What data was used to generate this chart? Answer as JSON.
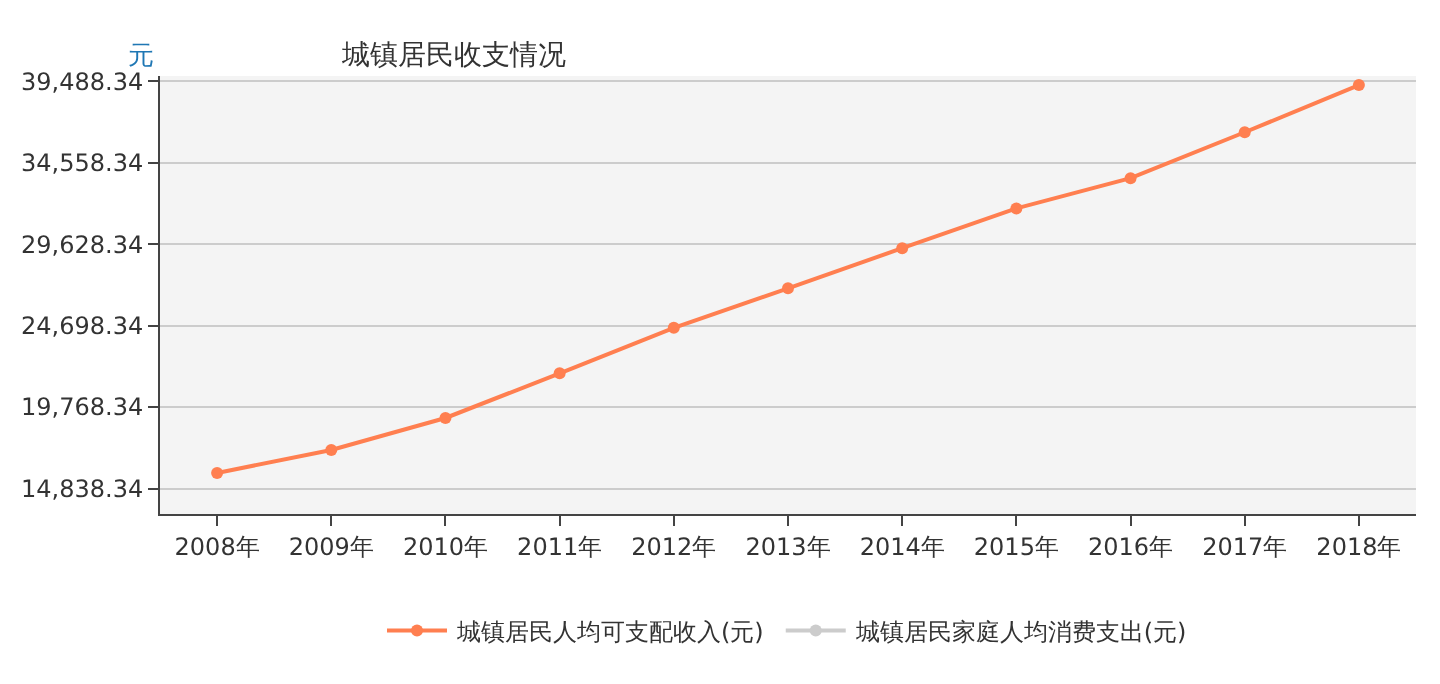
{
  "chart_data": {
    "type": "line",
    "title": "城镇居民收支情况",
    "ylabel": "元",
    "categories": [
      "2008年",
      "2009年",
      "2010年",
      "2011年",
      "2012年",
      "2013年",
      "2014年",
      "2015年",
      "2016年",
      "2017年",
      "2018年"
    ],
    "series": [
      {
        "name": "城镇居民人均可支配收入(元)",
        "color": "#ff7f50",
        "values": [
          15781,
          17175,
          19109,
          21810,
          24565,
          26955,
          29381,
          31790,
          33616,
          36396,
          39251
        ]
      },
      {
        "name": "城镇居民家庭人均消费支出(元)",
        "color": "#cccccc",
        "values": [
          null,
          null,
          null,
          null,
          null,
          null,
          null,
          null,
          null,
          null,
          null
        ]
      }
    ],
    "ylim": [
      13300,
      39800
    ],
    "yticks": [
      {
        "value": 14838.34,
        "label": "14,838.34"
      },
      {
        "value": 19768.34,
        "label": "19,768.34"
      },
      {
        "value": 24698.34,
        "label": "24,698.34"
      },
      {
        "value": 29628.34,
        "label": "29,628.34"
      },
      {
        "value": 34558.34,
        "label": "34,558.34"
      },
      {
        "value": 39488.34,
        "label": "39,488.34"
      }
    ],
    "grid": "y",
    "legend": "bottom",
    "marker": "circle",
    "line_style": "solid"
  }
}
